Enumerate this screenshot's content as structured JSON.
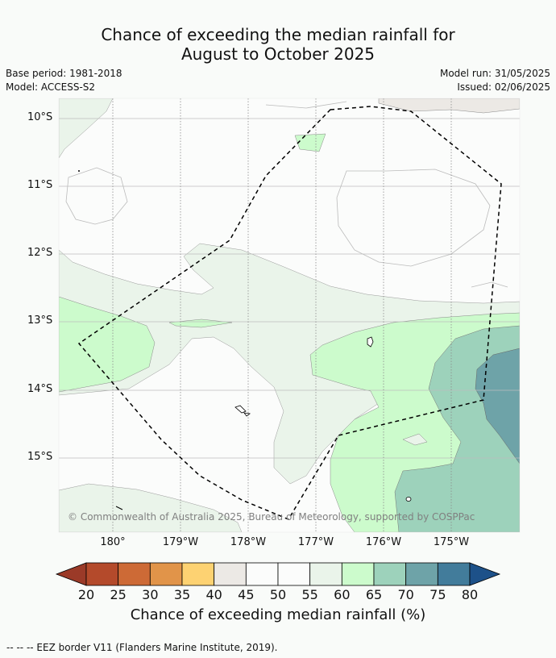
{
  "title": {
    "line1": "Chance of exceeding the median rainfall for",
    "line2": "August to October 2025"
  },
  "meta": {
    "base_period": "Base period: 1981-2018",
    "model": "Model: ACCESS-S2",
    "model_run": "Model run: 31/05/2025",
    "issued": "Issued: 02/06/2025"
  },
  "map": {
    "lat_labels": [
      "10°S",
      "11°S",
      "12°S",
      "13°S",
      "14°S",
      "15°S"
    ],
    "lon_labels": [
      "180°",
      "179°W",
      "178°W",
      "177°W",
      "176°W",
      "175°W"
    ],
    "copyright": "© Commonwealth of Australia 2025, Bureau of Meteorology, supported by COSPPac"
  },
  "colorbar": {
    "ticks": [
      "20",
      "25",
      "30",
      "35",
      "40",
      "45",
      "50",
      "55",
      "60",
      "65",
      "70",
      "75",
      "80"
    ],
    "colors": [
      "#b44a2b",
      "#cd6a36",
      "#e19449",
      "#fdd272",
      "#ece9e5",
      "#fbfcfb",
      "#fbfcfb",
      "#eaf4ea",
      "#ccfbcc",
      "#9dd2bb",
      "#6ea3a8",
      "#427c9b"
    ],
    "below_color": "#9b3a28",
    "above_color": "#1d5189",
    "title": "Chance of exceeding median rainfall (%)"
  },
  "footer": "--  --  -- EEZ border V11 (Flanders Marine Institute, 2019)."
}
